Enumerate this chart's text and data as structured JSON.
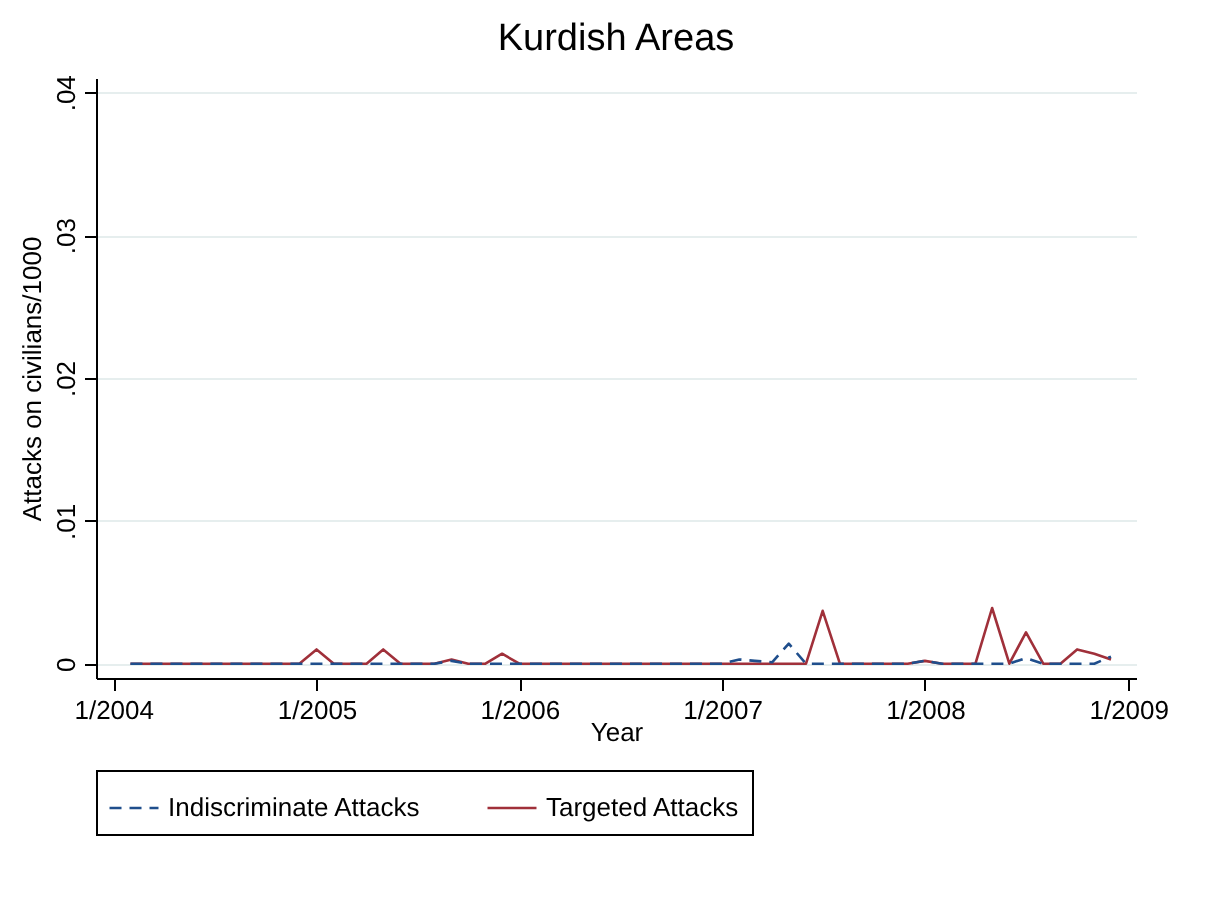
{
  "chart_data": {
    "type": "line",
    "title": "Kurdish Areas",
    "xlabel": "Year",
    "ylabel": "Attacks on civilians/1000",
    "x": [
      "2004-02",
      "2004-03",
      "2004-04",
      "2004-05",
      "2004-06",
      "2004-07",
      "2004-08",
      "2004-09",
      "2004-10",
      "2004-11",
      "2004-12",
      "2005-01",
      "2005-02",
      "2005-03",
      "2005-04",
      "2005-05",
      "2005-06",
      "2005-07",
      "2005-08",
      "2005-09",
      "2005-10",
      "2005-11",
      "2005-12",
      "2006-01",
      "2006-02",
      "2006-03",
      "2006-04",
      "2006-05",
      "2006-06",
      "2006-07",
      "2006-08",
      "2006-09",
      "2006-10",
      "2006-11",
      "2006-12",
      "2007-01",
      "2007-02",
      "2007-03",
      "2007-04",
      "2007-05",
      "2007-06",
      "2007-07",
      "2007-08",
      "2007-09",
      "2007-10",
      "2007-11",
      "2007-12",
      "2008-01",
      "2008-02",
      "2008-03",
      "2008-04",
      "2008-05",
      "2008-06",
      "2008-07",
      "2008-08",
      "2008-09",
      "2008-10",
      "2008-11",
      "2008-12"
    ],
    "series": [
      {
        "name": "Indiscriminate Attacks",
        "color": "#1f4e8c",
        "line_style": "dashed",
        "values": [
          0,
          0,
          0,
          0,
          0,
          0,
          0,
          0,
          0,
          0,
          0,
          0,
          0,
          0,
          0,
          0,
          0,
          0,
          0,
          0.0002,
          0,
          0,
          0,
          0,
          0,
          0,
          0,
          0,
          0,
          0,
          0,
          0,
          0,
          0,
          0,
          0,
          0.0003,
          0.0002,
          0.0001,
          0.0014,
          0,
          0,
          0,
          0,
          0,
          0,
          0,
          0.0002,
          0,
          0,
          0,
          0,
          0,
          0.0004,
          0,
          0,
          0,
          0,
          0.0005
        ]
      },
      {
        "name": "Targeted Attacks",
        "color": "#a0303a",
        "line_style": "solid",
        "values": [
          0,
          0,
          0,
          0,
          0,
          0,
          0,
          0,
          0,
          0,
          0,
          0.001,
          0,
          0,
          0,
          0.001,
          0,
          0,
          0,
          0.0003,
          0,
          0,
          0.0007,
          0,
          0,
          0,
          0,
          0,
          0,
          0,
          0,
          0,
          0,
          0,
          0,
          0,
          0,
          0,
          0,
          0,
          0,
          0.0037,
          0,
          0,
          0,
          0,
          0,
          0.0002,
          0,
          0,
          0,
          0.0039,
          0,
          0.0022,
          0,
          0,
          0.001,
          0.0007,
          0.0003
        ]
      }
    ],
    "xlim": [
      "2003-12",
      "2009-01-15"
    ],
    "xticks": [
      {
        "value": "2004-01",
        "label": "1/2004"
      },
      {
        "value": "2005-01",
        "label": "1/2005"
      },
      {
        "value": "2006-01",
        "label": "1/2006"
      },
      {
        "value": "2007-01",
        "label": "1/2007"
      },
      {
        "value": "2008-01",
        "label": "1/2008"
      },
      {
        "value": "2009-01",
        "label": "1/2009"
      }
    ],
    "ylim": [
      -0.001,
      0.041
    ],
    "yticks": [
      0,
      {
        "value": 0.01,
        "label": ".01"
      },
      {
        "value": 0.02,
        "label": ".02"
      },
      {
        "value": 0.03,
        "label": ".03"
      },
      {
        "value": 0.04,
        "label": ".04"
      }
    ],
    "grid": "y",
    "legend": "bottom",
    "marker": "none"
  }
}
